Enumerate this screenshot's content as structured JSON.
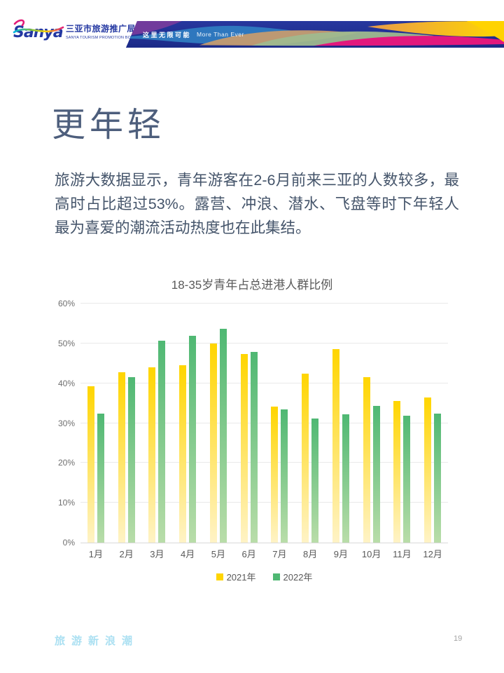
{
  "header": {
    "logo_text": "Sanya",
    "org_name_zh": "三亚市旅游推广局",
    "org_name_en": "SANYA TOURISM PROMOTION BOARD",
    "banner_slogan_zh": "这里无限可能",
    "banner_slogan_en": "More Than Ever"
  },
  "page": {
    "title": "更年轻",
    "body_text": "旅游大数据显示，青年游客在2-6月前来三亚的人数较多，最高时占比超过53%。露营、冲浪、潜水、飞盘等时下年轻人最为喜爱的潮流活动热度也在此集结。",
    "footer_text": "旅游新浪潮",
    "page_number": "19"
  },
  "colors": {
    "brand_navy": "#2438a2",
    "title_text": "#4d5e7c",
    "body_text": "#44546a",
    "chart_text": "#595959",
    "footer_blue": "#abe0f2"
  },
  "chart_data": {
    "type": "bar",
    "title": "18-35岁青年占总进港人群比例",
    "categories": [
      "1月",
      "2月",
      "3月",
      "4月",
      "5月",
      "6月",
      "7月",
      "8月",
      "9月",
      "10月",
      "11月",
      "12月"
    ],
    "series": [
      {
        "name": "2021年",
        "color": "#ffd500",
        "color_fade": "#fff3c6",
        "values": [
          39.2,
          42.8,
          44.0,
          44.5,
          49.9,
          47.4,
          34.2,
          42.4,
          48.6,
          41.6,
          35.5,
          36.5
        ]
      },
      {
        "name": "2022年",
        "color": "#4fb873",
        "color_fade": "#b9dda9",
        "values": [
          32.3,
          41.5,
          50.6,
          51.9,
          53.6,
          47.8,
          33.4,
          31.2,
          32.2,
          34.4,
          31.9,
          32.4
        ]
      }
    ],
    "xlabel": "",
    "ylabel": "",
    "ylim": [
      0,
      60
    ],
    "ytick_step": 10,
    "ytick_labels": [
      "0%",
      "10%",
      "20%",
      "30%",
      "40%",
      "50%",
      "60%"
    ],
    "grid": true,
    "legend_position": "bottom"
  }
}
